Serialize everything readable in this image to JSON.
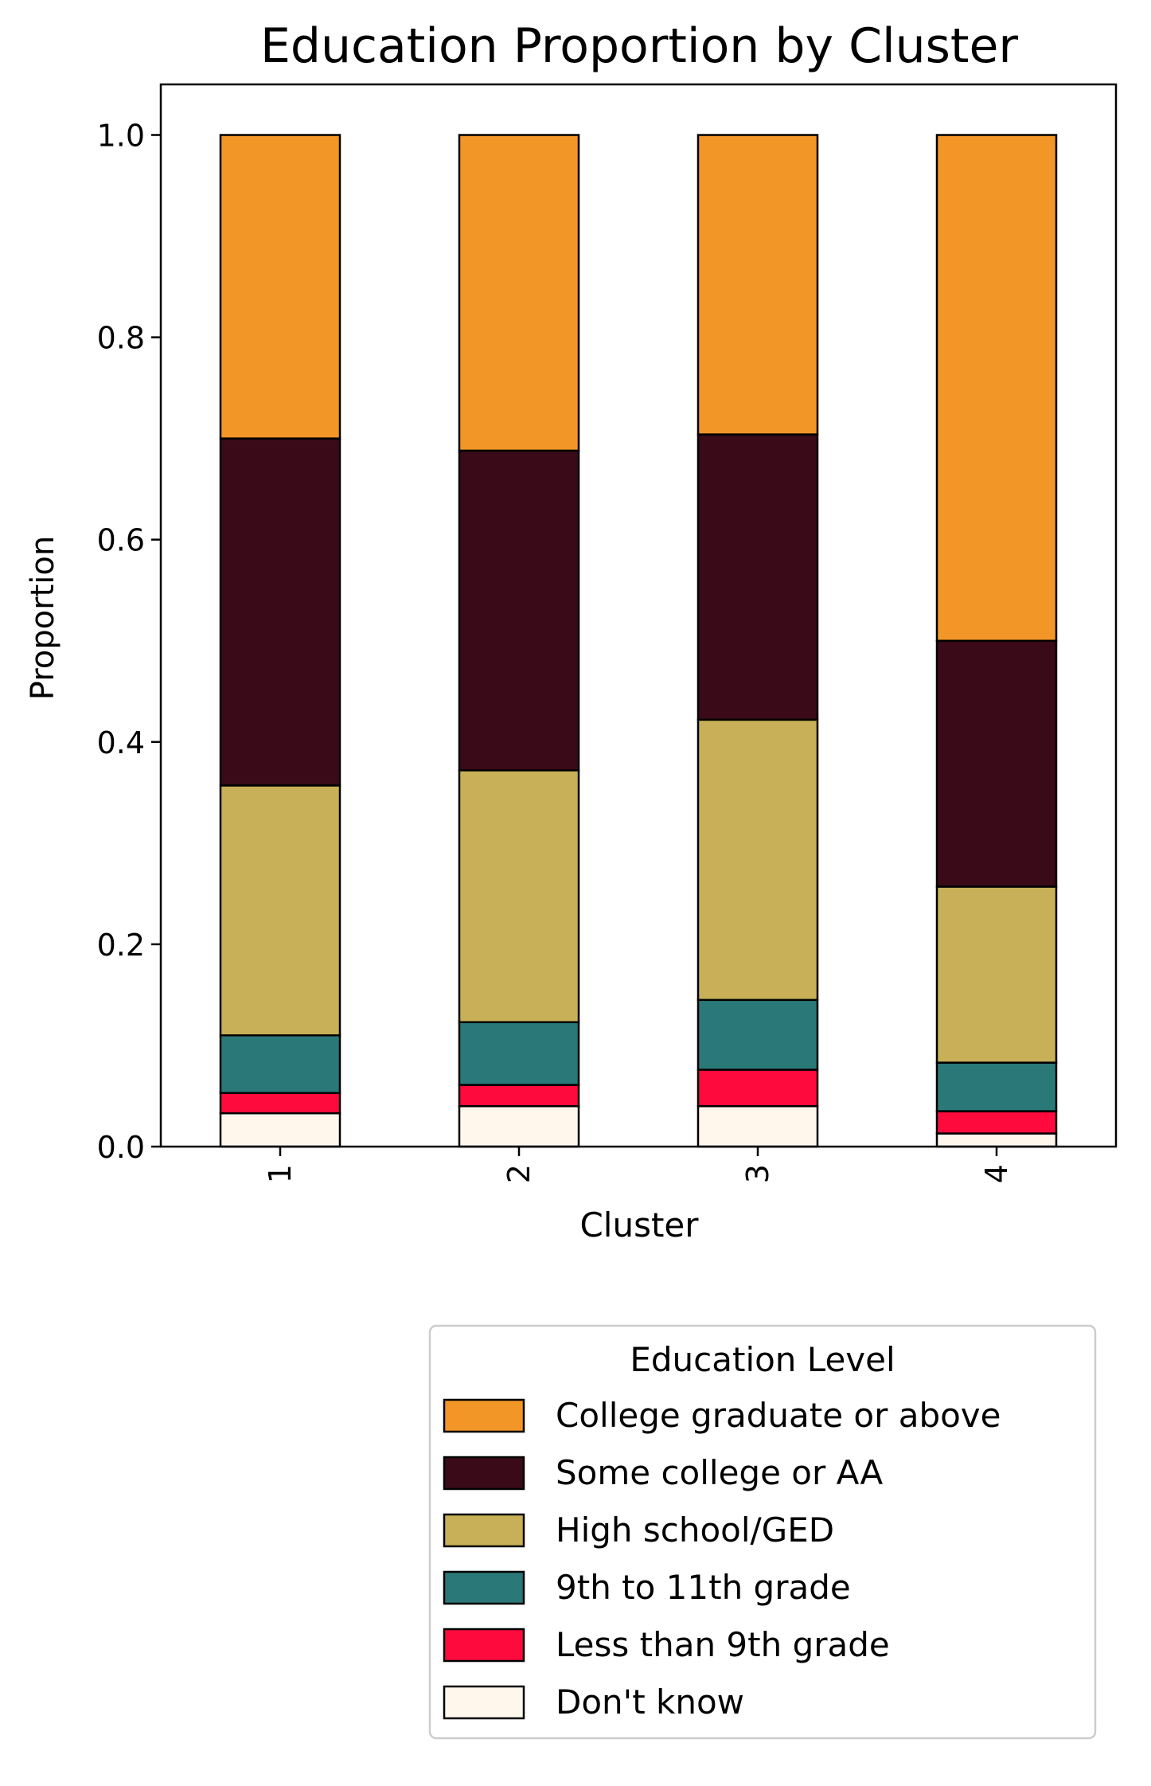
{
  "chart_data": {
    "type": "bar",
    "stacked": true,
    "title": "Education Proportion by Cluster",
    "xlabel": "Cluster",
    "ylabel": "Proportion",
    "categories": [
      "1",
      "2",
      "3",
      "4"
    ],
    "ylim": [
      0,
      1.05
    ],
    "yticks": [
      "0.0",
      "0.2",
      "0.4",
      "0.6",
      "0.8",
      "1.0"
    ],
    "grid": false,
    "legend": {
      "title": "Education Level",
      "placement": "below-right"
    },
    "series": [
      {
        "name": "Don't know",
        "color": "#fff7ec",
        "values": [
          0.033,
          0.04,
          0.04,
          0.013
        ]
      },
      {
        "name": "Less than 9th grade",
        "color": "#ff0a3d",
        "values": [
          0.02,
          0.021,
          0.036,
          0.022
        ]
      },
      {
        "name": "9th to 11th grade",
        "color": "#2a7878",
        "values": [
          0.057,
          0.062,
          0.069,
          0.048
        ]
      },
      {
        "name": "High school/GED",
        "color": "#c7b057",
        "values": [
          0.247,
          0.249,
          0.277,
          0.174
        ]
      },
      {
        "name": "Some college or AA",
        "color": "#3a0a19",
        "values": [
          0.343,
          0.316,
          0.282,
          0.243
        ]
      },
      {
        "name": "College graduate or above",
        "color": "#f39628",
        "values": [
          0.3,
          0.312,
          0.296,
          0.5
        ]
      }
    ]
  }
}
